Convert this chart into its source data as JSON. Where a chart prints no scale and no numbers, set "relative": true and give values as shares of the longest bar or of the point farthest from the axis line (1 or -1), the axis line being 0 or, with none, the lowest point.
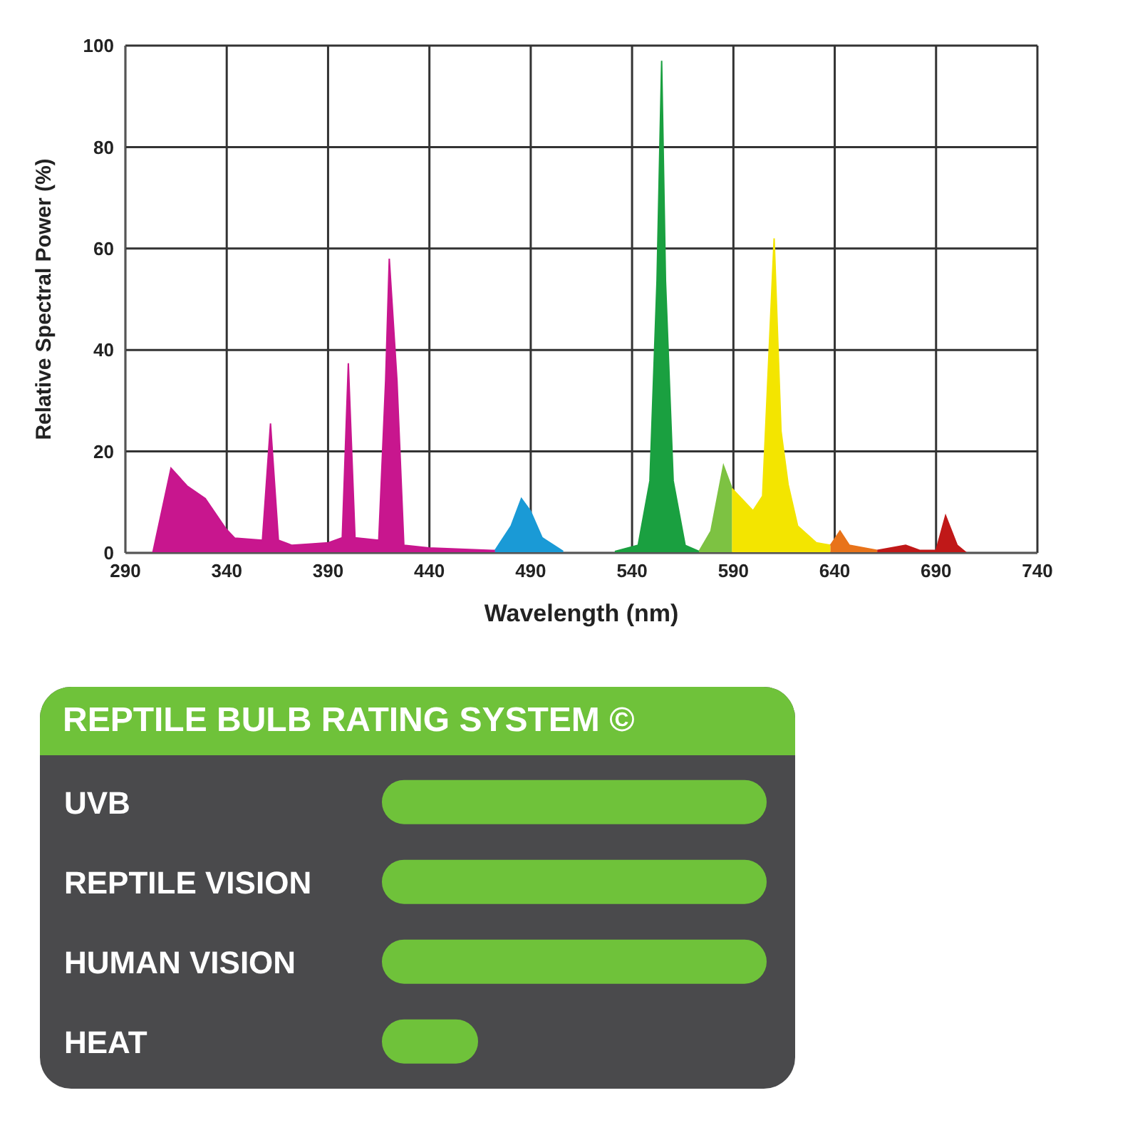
{
  "chart_data": [
    {
      "type": "area",
      "xlabel": "Wavelength (nm)",
      "ylabel": "Relative Spectral Power (%)",
      "xlim": [
        290,
        740
      ],
      "ylim": [
        0,
        100
      ],
      "xticks": [
        290,
        340,
        390,
        440,
        490,
        540,
        590,
        640,
        690,
        740
      ],
      "yticks": [
        0,
        20,
        40,
        60,
        80,
        100
      ],
      "grid": true,
      "series": [
        {
          "color": "#c8168e",
          "x": [
            303.5,
            312.5,
            320.4,
            329.4,
            339.5,
            344,
            357.6,
            361.6,
            365.5,
            372.2,
            390.2,
            397,
            400,
            403.3,
            415,
            418.4,
            420.2,
            424,
            427.4,
            439.8,
            471,
            472.4
          ],
          "values": [
            0,
            16.7,
            13.2,
            10.7,
            4.8,
            2.9,
            2.5,
            25.5,
            2.5,
            1.5,
            2,
            3,
            37.4,
            3,
            2.5,
            34,
            58,
            34,
            1.5,
            1,
            0.5,
            0.5
          ]
        },
        {
          "color": "#1a9ad6",
          "x": [
            472.4,
            480.3,
            485.4,
            489.8,
            495.6,
            506
          ],
          "values": [
            0.5,
            5.3,
            10.7,
            8.3,
            3,
            0.3
          ]
        },
        {
          "color": "#1aa040",
          "x": [
            531.5,
            543,
            548.8,
            552.3,
            554.6,
            556.5,
            560.3,
            566.2,
            573.1
          ],
          "values": [
            0.3,
            1.5,
            14.2,
            53.6,
            97,
            53.6,
            14.2,
            1.5,
            0.3
          ]
        },
        {
          "color": "#7dc242",
          "x": [
            573.1,
            578.9,
            585.1,
            589.3
          ],
          "values": [
            0.3,
            4.3,
            17.2,
            12.7
          ]
        },
        {
          "color": "#f3e500",
          "x": [
            589.3,
            599.7,
            604.4,
            610.1,
            613.5,
            617,
            621.7,
            630.9,
            637.9
          ],
          "values": [
            12.7,
            8.3,
            11.2,
            62,
            24,
            13.5,
            5.3,
            2,
            1.5
          ]
        },
        {
          "color": "#e8731a",
          "x": [
            637.9,
            642.6,
            647.2,
            661
          ],
          "values": [
            1.5,
            4.3,
            1.5,
            0.5
          ]
        },
        {
          "color": "#c01818",
          "x": [
            661,
            675,
            681.9,
            690,
            694.7,
            700.4,
            705
          ],
          "values": [
            0.5,
            1.5,
            0.5,
            0.5,
            7.3,
            1.5,
            0
          ]
        }
      ]
    },
    {
      "type": "bar",
      "orientation": "horizontal",
      "relative": true,
      "title": "REPTILE BULB RATING SYSTEM ©",
      "categories": [
        "UVB",
        "REPTILE VISION",
        "HUMAN VISION",
        "HEAT"
      ],
      "values": [
        1,
        1,
        1,
        0.25
      ],
      "color": "#6fc23a"
    }
  ]
}
